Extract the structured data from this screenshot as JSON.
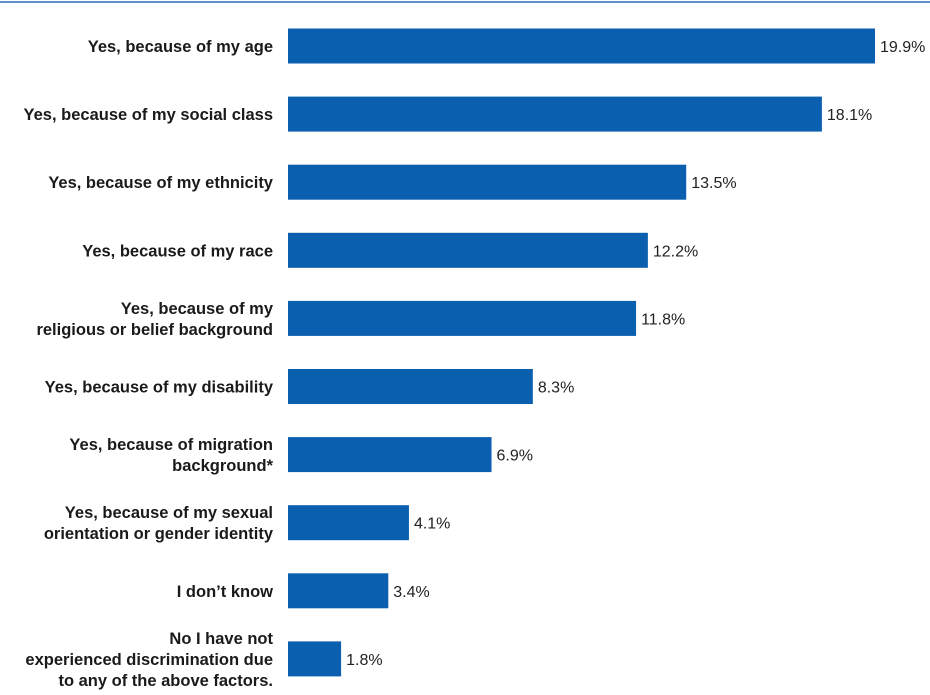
{
  "chart_data": {
    "type": "bar",
    "orientation": "horizontal",
    "categories": [
      [
        "Yes, because of my age"
      ],
      [
        "Yes, because of my social class"
      ],
      [
        "Yes, because of my ethnicity"
      ],
      [
        "Yes, because of my race"
      ],
      [
        "Yes, because of my",
        "religious or belief background"
      ],
      [
        "Yes, because of my disability"
      ],
      [
        "Yes, because of migration",
        "background*"
      ],
      [
        "Yes, because of my sexual",
        "orientation or gender identity"
      ],
      [
        "I don’t know"
      ],
      [
        "No I have not",
        "experienced discrimination due",
        "to any of the above factors."
      ]
    ],
    "values": [
      19.9,
      18.1,
      13.5,
      12.2,
      11.8,
      8.3,
      6.9,
      4.1,
      3.4,
      1.8
    ],
    "value_labels": [
      "19.9%",
      "18.1%",
      "13.5%",
      "12.2%",
      "11.8%",
      "8.3%",
      "6.9%",
      "4.1%",
      "3.4%",
      "1.8%"
    ],
    "xlim": [
      0,
      19.9
    ],
    "grid": false,
    "bar_color": "#0a5fae",
    "top_rule_color": "#2e6db4"
  }
}
